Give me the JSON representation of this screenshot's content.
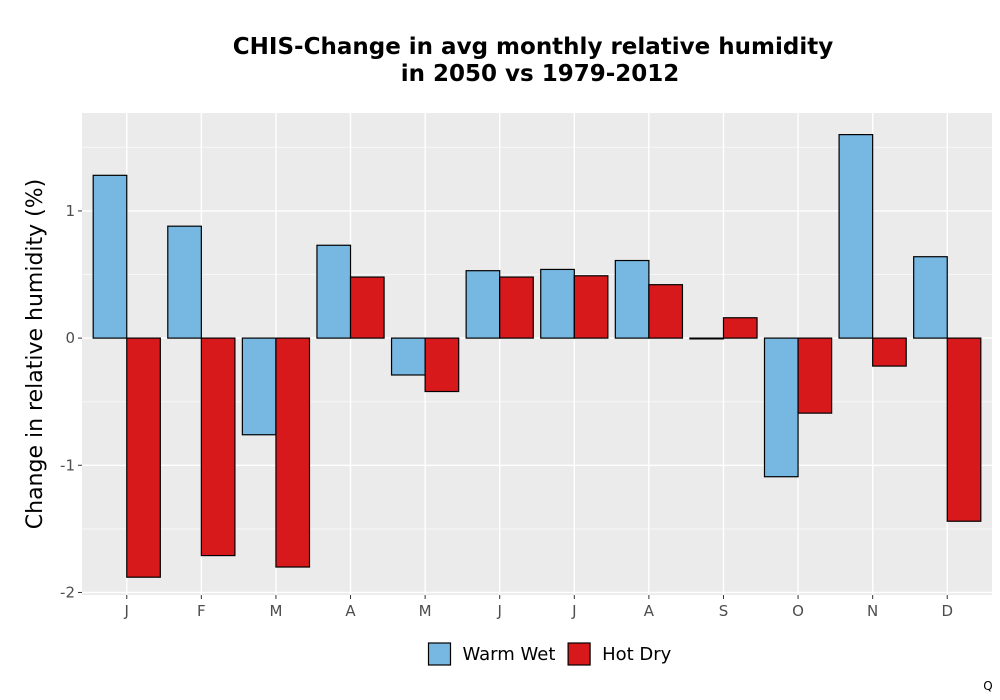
{
  "chart_data": {
    "type": "bar",
    "title_line1": "CHIS-Change in avg monthly relative humidity",
    "title_line2": "in 2050 vs 1979-2012",
    "xlabel": "",
    "ylabel": "Change in relative humidity (%)",
    "categories": [
      "J",
      "F",
      "M",
      "A",
      "M",
      "J",
      "J",
      "A",
      "S",
      "O",
      "N",
      "D"
    ],
    "series": [
      {
        "name": "Warm Wet",
        "color": "#77b8e2",
        "values": [
          1.28,
          0.88,
          -0.76,
          0.73,
          -0.29,
          0.53,
          0.54,
          0.61,
          0.0,
          -1.09,
          1.6,
          0.64
        ]
      },
      {
        "name": "Hot Dry",
        "color": "#d7191c",
        "values": [
          -1.88,
          -1.71,
          -1.8,
          0.48,
          -0.42,
          0.48,
          0.49,
          0.42,
          0.16,
          -0.59,
          -0.22,
          -1.44
        ]
      }
    ],
    "yticks": [
      -2,
      -1,
      0,
      1
    ],
    "ylim": [
      -2.02,
      1.77
    ],
    "grid": true,
    "legend_position": "bottom"
  },
  "corner_mark": "Q"
}
